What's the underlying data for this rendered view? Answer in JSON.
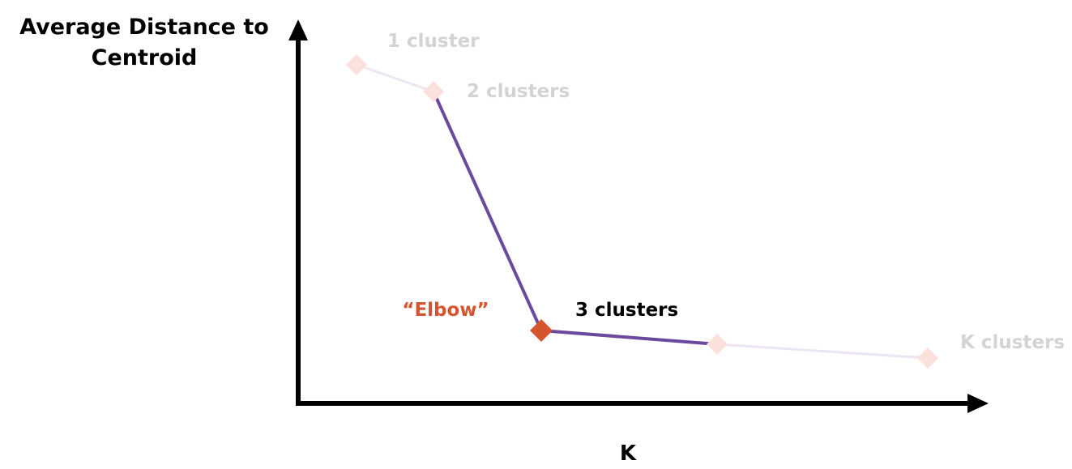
{
  "colors": {
    "axis": "#000000",
    "line_active": "#6b4a9e",
    "line_faded": "#ece6f2",
    "marker_faded": "#fbe1dc",
    "marker_highlight": "#d4552f",
    "label_faded": "#d3d3d3",
    "label_active": "#000000",
    "note": "#d4552f"
  },
  "chart_data": {
    "type": "line",
    "ylabel": [
      "Average Distance to",
      "Centroid"
    ],
    "xlabel": "K",
    "grid": false,
    "legend": "none",
    "points": [
      {
        "k": "1",
        "label": "1 cluster",
        "state": "faded"
      },
      {
        "k": "2",
        "label": "2 clusters",
        "state": "faded"
      },
      {
        "k": "3",
        "label": "3 clusters",
        "state": "highlight"
      },
      {
        "k": "4",
        "label": "",
        "state": "faded"
      },
      {
        "k": "K",
        "label": "K clusters",
        "state": "faded"
      }
    ],
    "annotation": {
      "text": "“Elbow”",
      "target_point": 2
    }
  }
}
